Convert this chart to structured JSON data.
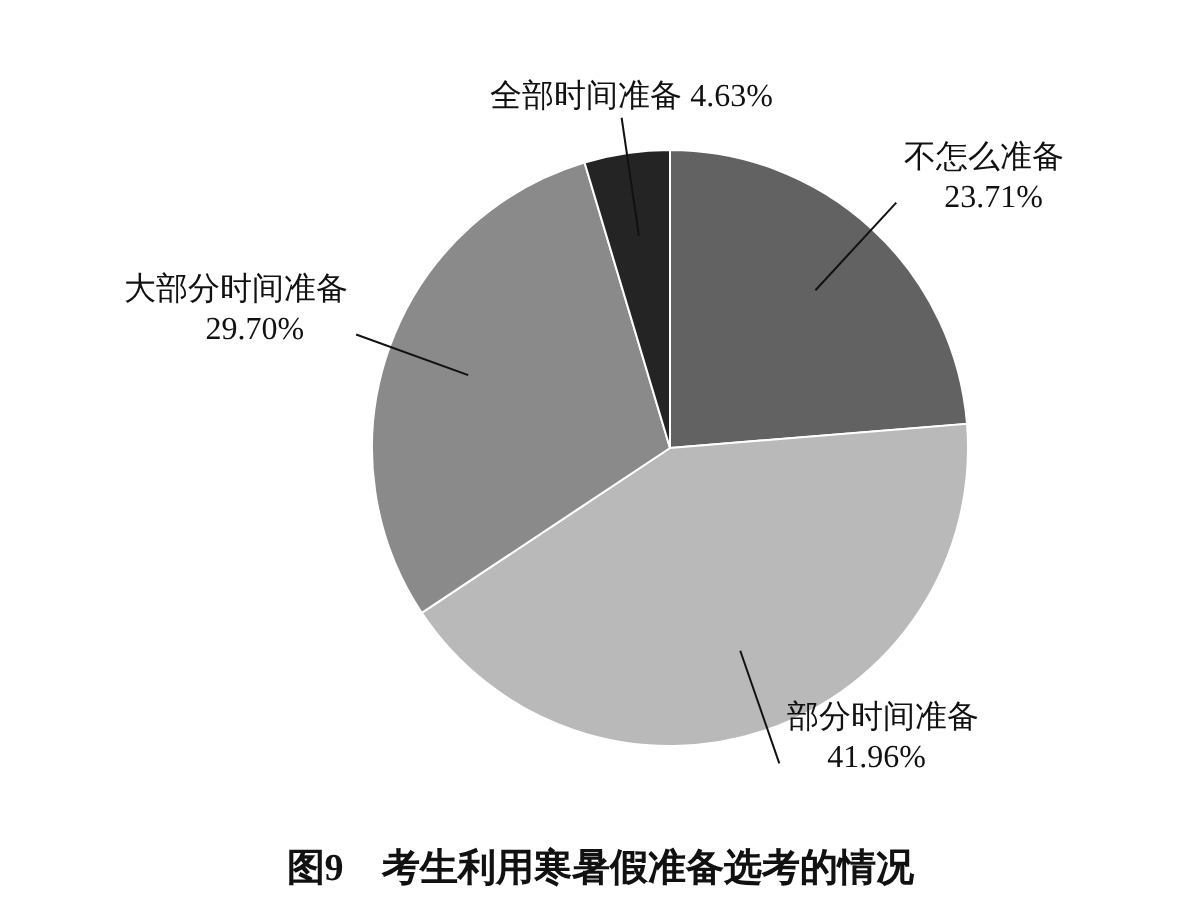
{
  "chart_data": {
    "type": "pie",
    "title": "图9　考生利用寒暑假准备选考的情况",
    "categories": [
      "不怎么准备",
      "部分时间准备",
      "大部分时间准备",
      "全部时间准备"
    ],
    "values": [
      23.71,
      41.96,
      29.7,
      4.63
    ],
    "value_labels": [
      "23.71%",
      "41.96%",
      "29.70%",
      "4.63%"
    ],
    "colors": [
      "#626262",
      "#b9b9b9",
      "#8a8a8a",
      "#242424"
    ]
  }
}
